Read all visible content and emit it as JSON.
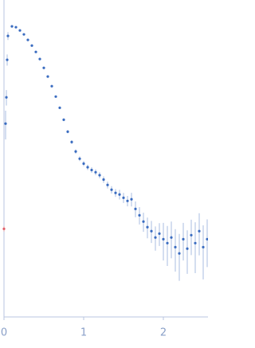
{
  "chart_data": {
    "type": "scatter",
    "log_y": true,
    "xlim": [
      0,
      2.56
    ],
    "xticks": [
      0,
      1,
      2
    ],
    "ylim": [
      0.0144,
      1.47
    ],
    "series": [
      {
        "color": "#3a6cc0",
        "error_color": "#a8bde0",
        "x": [
          0.02,
          0.03,
          0.04,
          0.05,
          0.1,
          0.15,
          0.2,
          0.25,
          0.3,
          0.35,
          0.4,
          0.45,
          0.5,
          0.55,
          0.6,
          0.65,
          0.7,
          0.75,
          0.8,
          0.85,
          0.9,
          0.95,
          1.0,
          1.05,
          1.1,
          1.15,
          1.2,
          1.25,
          1.3,
          1.35,
          1.4,
          1.45,
          1.5,
          1.55,
          1.6,
          1.65,
          1.7,
          1.75,
          1.8,
          1.85,
          1.9,
          1.95,
          2.0,
          2.05,
          2.1,
          2.15,
          2.2,
          2.25,
          2.3,
          2.35,
          2.4,
          2.45,
          2.5,
          2.55
        ],
        "values": [
          0.242,
          0.355,
          0.614,
          0.87,
          1.0,
          0.988,
          0.943,
          0.89,
          0.821,
          0.756,
          0.689,
          0.621,
          0.546,
          0.481,
          0.418,
          0.359,
          0.305,
          0.256,
          0.215,
          0.185,
          0.161,
          0.145,
          0.135,
          0.128,
          0.123,
          0.119,
          0.114,
          0.107,
          0.0989,
          0.0922,
          0.088,
          0.086,
          0.082,
          0.0783,
          0.0802,
          0.0697,
          0.0635,
          0.0579,
          0.0534,
          0.0504,
          0.0459,
          0.0486,
          0.0448,
          0.0423,
          0.0459,
          0.0399,
          0.0364,
          0.0448,
          0.039,
          0.0475,
          0.0423,
          0.0504,
          0.0399,
          0.0448
        ],
        "errors": [
          0.05,
          0.04,
          0.05,
          0.05,
          0.005,
          0.005,
          0.005,
          0.005,
          0.005,
          0.005,
          0.005,
          0.005,
          0.005,
          0.005,
          0.005,
          0.005,
          0.005,
          0.005,
          0.005,
          0.005,
          0.005,
          0.005,
          0.005,
          0.005,
          0.005,
          0.005,
          0.005,
          0.005,
          0.005,
          0.005,
          0.005,
          0.006,
          0.006,
          0.006,
          0.008,
          0.008,
          0.008,
          0.008,
          0.008,
          0.008,
          0.008,
          0.008,
          0.012,
          0.012,
          0.012,
          0.012,
          0.012,
          0.012,
          0.012,
          0.012,
          0.015,
          0.015,
          0.015,
          0.015
        ]
      },
      {
        "color": "#e0606a",
        "error_color": "#e0a0a6",
        "x": [
          0.0
        ],
        "values": [
          0.0521
        ],
        "errors": [
          0.002
        ]
      }
    ]
  }
}
